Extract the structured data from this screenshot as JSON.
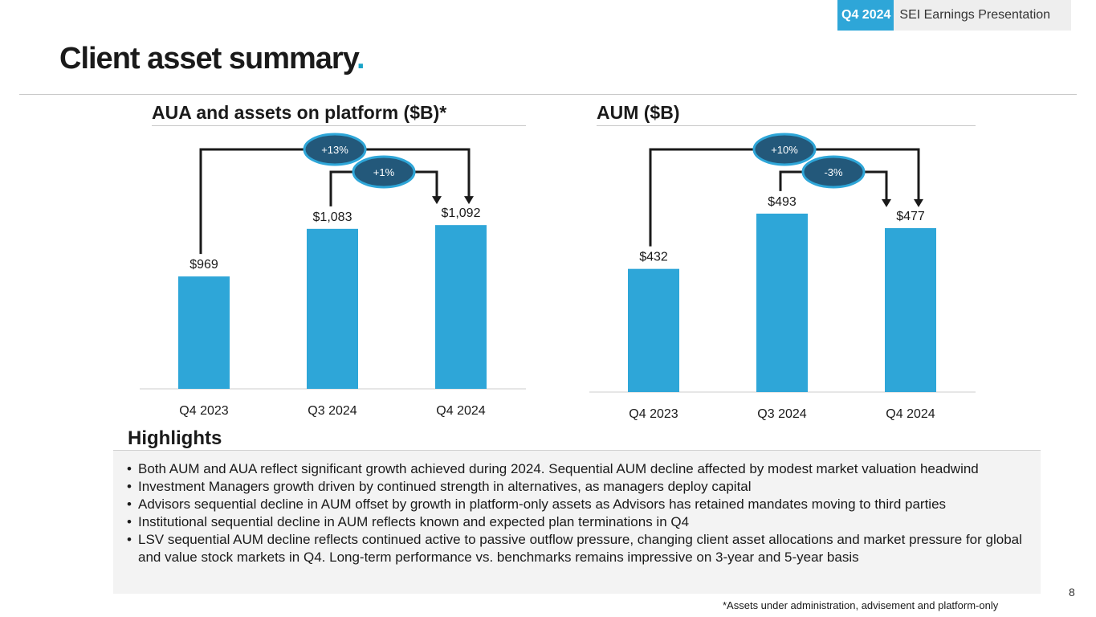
{
  "header": {
    "period_tag": "Q4 2024",
    "deck_title": "SEI Earnings Presentation",
    "page_title": "Client asset summary",
    "title_dot": "."
  },
  "colors": {
    "bar": "#2ea6d8",
    "accent": "#1aa3c8",
    "bubble_fill": "#23587a",
    "bubble_border": "#2ea6d8"
  },
  "chart_data": [
    {
      "type": "bar",
      "title": "AUA and assets on platform ($B)*",
      "categories": [
        "Q4 2023",
        "Q3 2024",
        "Q4 2024"
      ],
      "values": [
        969,
        1083,
        1092
      ],
      "value_labels": [
        "$969",
        "$1,083",
        "$1,092"
      ],
      "ylim": [
        700,
        1100
      ],
      "xlabel": "",
      "ylabel": "",
      "annotations": [
        {
          "label": "+13%",
          "from": "Q4 2023",
          "to": "Q4 2024"
        },
        {
          "label": "+1%",
          "from": "Q3 2024",
          "to": "Q4 2024"
        }
      ]
    },
    {
      "type": "bar",
      "title": "AUM ($B)",
      "categories": [
        "Q4 2023",
        "Q3 2024",
        "Q4 2024"
      ],
      "values": [
        432,
        493,
        477
      ],
      "value_labels": [
        "$432",
        "$493",
        "$477"
      ],
      "ylim": [
        296,
        500
      ],
      "xlabel": "",
      "ylabel": "",
      "annotations": [
        {
          "label": "+10%",
          "from": "Q4 2023",
          "to": "Q4 2024"
        },
        {
          "label": "-3%",
          "from": "Q3 2024",
          "to": "Q4 2024"
        }
      ]
    }
  ],
  "highlights": {
    "heading": "Highlights",
    "items": [
      "Both AUM and AUA reflect significant growth achieved during 2024. Sequential AUM decline affected by modest market valuation headwind",
      "Investment Managers growth driven by continued strength in alternatives, as managers deploy capital",
      "Advisors sequential decline in AUM offset by growth in platform-only assets as Advisors has retained mandates moving to third parties",
      "Institutional sequential decline in AUM reflects known and expected plan terminations in Q4",
      "LSV sequential AUM decline reflects continued active to passive outflow pressure, changing client asset allocations and market pressure for global and value stock markets in Q4. Long-term performance vs. benchmarks remains impressive on 3-year and 5-year basis"
    ]
  },
  "footnote": "*Assets under administration, advisement and platform-only",
  "page_number": "8"
}
